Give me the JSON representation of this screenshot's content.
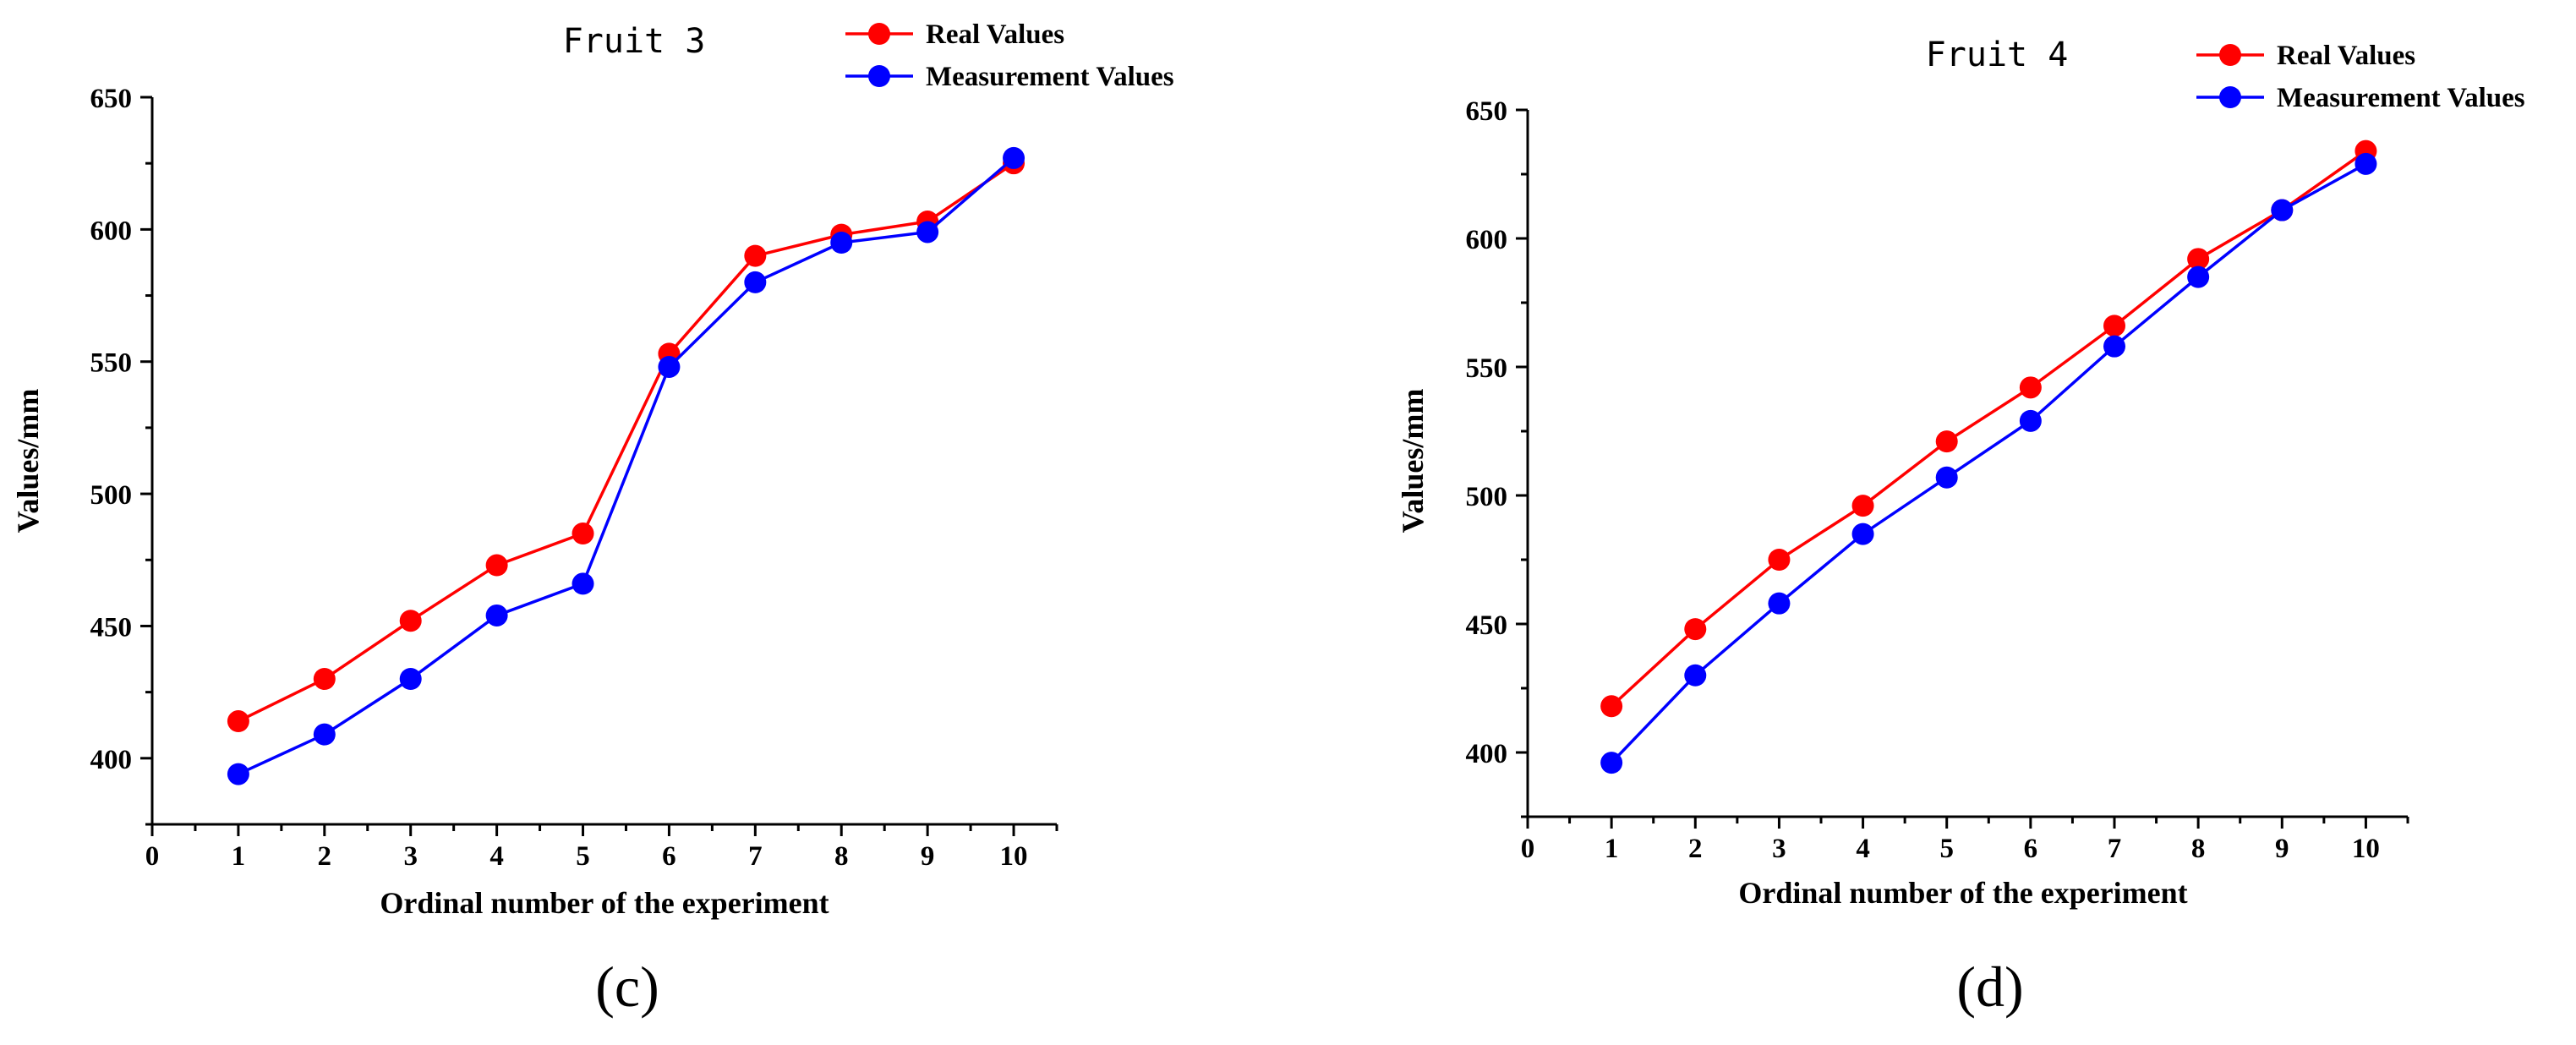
{
  "colors": {
    "real": "#ff0000",
    "measured": "#0000ff",
    "axis": "#000000"
  },
  "chart_data": [
    {
      "type": "line",
      "panel": "c",
      "panel_label": "(c)",
      "title": "Fruit 3",
      "xlabel": "Ordinal number of the experiment",
      "ylabel": "Values/mm",
      "xlim": [
        0,
        10.5
      ],
      "ylim": [
        375,
        650
      ],
      "xticks": [
        0,
        1,
        2,
        3,
        4,
        5,
        6,
        7,
        8,
        9,
        10
      ],
      "xtick_labels": [
        "0",
        "1",
        "2",
        "3",
        "4",
        "5",
        "6",
        "7",
        "8",
        "9",
        "10"
      ],
      "yticks": [
        400,
        450,
        500,
        550,
        600,
        650
      ],
      "ytick_labels": [
        "400",
        "450",
        "500",
        "550",
        "600",
        "650"
      ],
      "x": [
        1,
        2,
        3,
        4,
        5,
        6,
        7,
        8,
        9,
        10
      ],
      "series": [
        {
          "name": "Real Values",
          "color_key": "real",
          "values": [
            414,
            430,
            452,
            473,
            485,
            553,
            590,
            598,
            603,
            625
          ]
        },
        {
          "name": "Measurement Values",
          "color_key": "measured",
          "values": [
            394,
            409,
            430,
            454,
            466,
            548,
            580,
            595,
            599,
            627
          ]
        }
      ],
      "legend": "top-right"
    },
    {
      "type": "line",
      "panel": "d",
      "panel_label": "(d)",
      "title": "Fruit 4",
      "xlabel": "Ordinal number of the experiment",
      "ylabel": "Values/mm",
      "xlim": [
        0,
        10.5
      ],
      "ylim": [
        375,
        650
      ],
      "xticks": [
        0,
        1,
        2,
        3,
        4,
        5,
        6,
        7,
        8,
        9,
        10
      ],
      "xtick_labels": [
        "0",
        "1",
        "2",
        "3",
        "4",
        "5",
        "6",
        "7",
        "8",
        "9",
        "10"
      ],
      "yticks": [
        400,
        450,
        500,
        550,
        600,
        650
      ],
      "ytick_labels": [
        "400",
        "450",
        "500",
        "550",
        "600",
        "650"
      ],
      "x": [
        1,
        2,
        3,
        4,
        5,
        6,
        7,
        8,
        9,
        10
      ],
      "series": [
        {
          "name": "Real Values",
          "color_key": "real",
          "values": [
            418,
            448,
            475,
            496,
            521,
            542,
            566,
            592,
            611,
            634
          ]
        },
        {
          "name": "Measurement Values",
          "color_key": "measured",
          "values": [
            396,
            430,
            458,
            485,
            507,
            529,
            558,
            585,
            611,
            629
          ]
        }
      ],
      "legend": "top-right"
    }
  ]
}
